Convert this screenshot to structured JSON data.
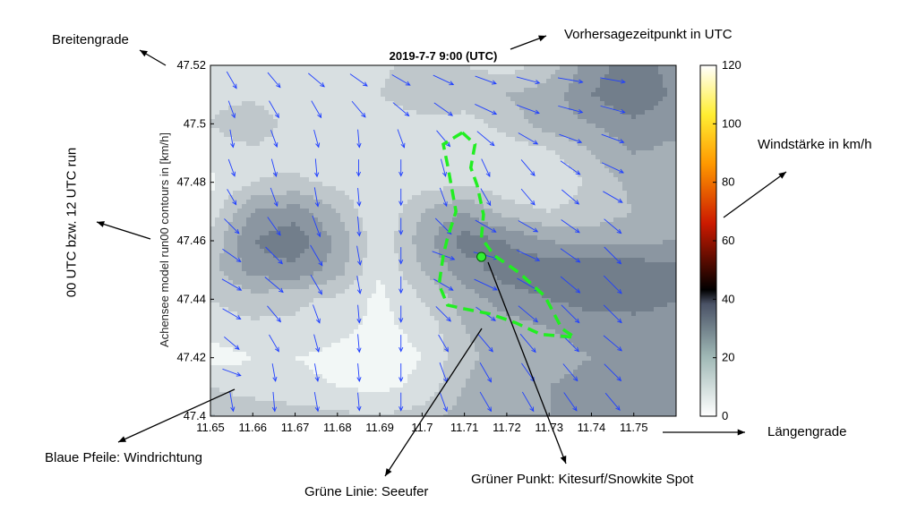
{
  "chart_data": {
    "type": "contour",
    "title": "2019-7-7  9:00 (UTC)",
    "ylabel": "Achensee model run00  contours in [km/h]",
    "xlabel": "",
    "xlim": [
      11.65,
      11.76
    ],
    "ylim": [
      47.4,
      47.52
    ],
    "x_ticks": [
      "11.65",
      "11.66",
      "11.67",
      "11.68",
      "11.69",
      "11.7",
      "11.71",
      "11.72",
      "11.73",
      "11.74",
      "11.75"
    ],
    "y_ticks": [
      "47.4",
      "47.42",
      "47.44",
      "47.46",
      "47.48",
      "47.5",
      "47.52"
    ],
    "colorbar": {
      "label_values": [
        "0",
        "20",
        "40",
        "60",
        "80",
        "100",
        "120"
      ],
      "min": 0,
      "max": 120,
      "stops": [
        "#ffffff",
        "#9fb8b5",
        "#5d6b80",
        "#000000",
        "#cc1a00",
        "#ffaa00",
        "#ffff66",
        "#ffffff"
      ]
    },
    "grid_lon": [
      11.65,
      11.66,
      11.67,
      11.68,
      11.69,
      11.7,
      11.71,
      11.72,
      11.73,
      11.74,
      11.75,
      11.76
    ],
    "grid_lat": [
      47.4,
      47.41,
      47.42,
      47.43,
      47.44,
      47.45,
      47.46,
      47.47,
      47.48,
      47.49,
      47.5,
      47.51,
      47.52
    ],
    "speed_kmh": [
      [
        12,
        11,
        10,
        9,
        8,
        10,
        14,
        16,
        16,
        17,
        18,
        19
      ],
      [
        8,
        6,
        5,
        4,
        3,
        5,
        12,
        15,
        16,
        17,
        19,
        20
      ],
      [
        2,
        4,
        4,
        3,
        2,
        4,
        11,
        14,
        15,
        16,
        18,
        18
      ],
      [
        6,
        7,
        7,
        5,
        3,
        5,
        12,
        14,
        16,
        17,
        18,
        18
      ],
      [
        8,
        10,
        9,
        7,
        3,
        8,
        14,
        18,
        20,
        22,
        22,
        20
      ],
      [
        10,
        18,
        19,
        14,
        4,
        12,
        18,
        22,
        23,
        24,
        23,
        21
      ],
      [
        9,
        20,
        23,
        15,
        5,
        14,
        22,
        20,
        16,
        14,
        15,
        16
      ],
      [
        6,
        16,
        18,
        12,
        4,
        12,
        16,
        10,
        8,
        10,
        12,
        14
      ],
      [
        3,
        8,
        9,
        7,
        4,
        6,
        7,
        5,
        4,
        9,
        13,
        14
      ],
      [
        6,
        7,
        6,
        5,
        4,
        8,
        4,
        5,
        7,
        12,
        16,
        15
      ],
      [
        8,
        11,
        6,
        5,
        4,
        6,
        6,
        10,
        14,
        16,
        19,
        17
      ],
      [
        7,
        7,
        6,
        6,
        8,
        12,
        11,
        12,
        14,
        20,
        24,
        19
      ],
      [
        8,
        6,
        5,
        6,
        7,
        10,
        8,
        6,
        10,
        18,
        22,
        18
      ]
    ],
    "wind_arrows": [
      {
        "lon": 11.655,
        "lat": 47.405,
        "dir": 170,
        "len": 0.6
      },
      {
        "lon": 11.665,
        "lat": 47.405,
        "dir": 175,
        "len": 0.6
      },
      {
        "lon": 11.675,
        "lat": 47.405,
        "dir": 170,
        "len": 0.6
      },
      {
        "lon": 11.685,
        "lat": 47.405,
        "dir": 175,
        "len": 0.5
      },
      {
        "lon": 11.695,
        "lat": 47.405,
        "dir": 180,
        "len": 0.5
      },
      {
        "lon": 11.705,
        "lat": 47.405,
        "dir": 160,
        "len": 0.7
      },
      {
        "lon": 11.715,
        "lat": 47.405,
        "dir": 150,
        "len": 0.8
      },
      {
        "lon": 11.725,
        "lat": 47.405,
        "dir": 150,
        "len": 0.8
      },
      {
        "lon": 11.735,
        "lat": 47.405,
        "dir": 145,
        "len": 0.8
      },
      {
        "lon": 11.745,
        "lat": 47.405,
        "dir": 140,
        "len": 0.8
      },
      {
        "lon": 11.655,
        "lat": 47.415,
        "dir": 110,
        "len": 0.6
      },
      {
        "lon": 11.665,
        "lat": 47.415,
        "dir": 170,
        "len": 0.5
      },
      {
        "lon": 11.675,
        "lat": 47.415,
        "dir": 170,
        "len": 0.5
      },
      {
        "lon": 11.685,
        "lat": 47.415,
        "dir": 175,
        "len": 0.5
      },
      {
        "lon": 11.695,
        "lat": 47.415,
        "dir": 180,
        "len": 0.5
      },
      {
        "lon": 11.705,
        "lat": 47.415,
        "dir": 160,
        "len": 0.7
      },
      {
        "lon": 11.715,
        "lat": 47.415,
        "dir": 150,
        "len": 0.8
      },
      {
        "lon": 11.725,
        "lat": 47.415,
        "dir": 145,
        "len": 0.8
      },
      {
        "lon": 11.735,
        "lat": 47.415,
        "dir": 140,
        "len": 0.8
      },
      {
        "lon": 11.745,
        "lat": 47.415,
        "dir": 135,
        "len": 0.9
      },
      {
        "lon": 11.655,
        "lat": 47.425,
        "dir": 130,
        "len": 0.6
      },
      {
        "lon": 11.665,
        "lat": 47.425,
        "dir": 150,
        "len": 0.6
      },
      {
        "lon": 11.675,
        "lat": 47.425,
        "dir": 165,
        "len": 0.5
      },
      {
        "lon": 11.685,
        "lat": 47.425,
        "dir": 175,
        "len": 0.5
      },
      {
        "lon": 11.695,
        "lat": 47.425,
        "dir": 180,
        "len": 0.4
      },
      {
        "lon": 11.705,
        "lat": 47.425,
        "dir": 150,
        "len": 0.6
      },
      {
        "lon": 11.715,
        "lat": 47.425,
        "dir": 140,
        "len": 0.8
      },
      {
        "lon": 11.725,
        "lat": 47.425,
        "dir": 140,
        "len": 0.9
      },
      {
        "lon": 11.735,
        "lat": 47.425,
        "dir": 135,
        "len": 0.9
      },
      {
        "lon": 11.745,
        "lat": 47.425,
        "dir": 130,
        "len": 0.9
      },
      {
        "lon": 11.655,
        "lat": 47.435,
        "dir": 120,
        "len": 0.7
      },
      {
        "lon": 11.665,
        "lat": 47.435,
        "dir": 140,
        "len": 0.7
      },
      {
        "lon": 11.675,
        "lat": 47.435,
        "dir": 160,
        "len": 0.6
      },
      {
        "lon": 11.685,
        "lat": 47.435,
        "dir": 175,
        "len": 0.5
      },
      {
        "lon": 11.695,
        "lat": 47.435,
        "dir": 180,
        "len": 0.4
      },
      {
        "lon": 11.705,
        "lat": 47.435,
        "dir": 135,
        "len": 0.7
      },
      {
        "lon": 11.715,
        "lat": 47.435,
        "dir": 125,
        "len": 0.9
      },
      {
        "lon": 11.725,
        "lat": 47.435,
        "dir": 130,
        "len": 1.0
      },
      {
        "lon": 11.735,
        "lat": 47.435,
        "dir": 135,
        "len": 1.0
      },
      {
        "lon": 11.745,
        "lat": 47.435,
        "dir": 135,
        "len": 1.0
      },
      {
        "lon": 11.655,
        "lat": 47.445,
        "dir": 120,
        "len": 0.8
      },
      {
        "lon": 11.665,
        "lat": 47.445,
        "dir": 130,
        "len": 0.9
      },
      {
        "lon": 11.675,
        "lat": 47.445,
        "dir": 150,
        "len": 0.8
      },
      {
        "lon": 11.685,
        "lat": 47.445,
        "dir": 170,
        "len": 0.5
      },
      {
        "lon": 11.695,
        "lat": 47.445,
        "dir": 180,
        "len": 0.4
      },
      {
        "lon": 11.705,
        "lat": 47.445,
        "dir": 120,
        "len": 0.8
      },
      {
        "lon": 11.715,
        "lat": 47.445,
        "dir": 115,
        "len": 1.0
      },
      {
        "lon": 11.725,
        "lat": 47.445,
        "dir": 120,
        "len": 1.0
      },
      {
        "lon": 11.735,
        "lat": 47.445,
        "dir": 130,
        "len": 1.0
      },
      {
        "lon": 11.745,
        "lat": 47.445,
        "dir": 135,
        "len": 1.0
      },
      {
        "lon": 11.655,
        "lat": 47.455,
        "dir": 125,
        "len": 0.8
      },
      {
        "lon": 11.665,
        "lat": 47.455,
        "dir": 135,
        "len": 0.9
      },
      {
        "lon": 11.675,
        "lat": 47.455,
        "dir": 150,
        "len": 0.9
      },
      {
        "lon": 11.685,
        "lat": 47.455,
        "dir": 170,
        "len": 0.6
      },
      {
        "lon": 11.695,
        "lat": 47.455,
        "dir": 180,
        "len": 0.4
      },
      {
        "lon": 11.705,
        "lat": 47.455,
        "dir": 110,
        "len": 0.9
      },
      {
        "lon": 11.715,
        "lat": 47.455,
        "dir": 105,
        "len": 1.0
      },
      {
        "lon": 11.725,
        "lat": 47.455,
        "dir": 115,
        "len": 1.0
      },
      {
        "lon": 11.735,
        "lat": 47.455,
        "dir": 125,
        "len": 0.9
      },
      {
        "lon": 11.745,
        "lat": 47.455,
        "dir": 135,
        "len": 0.9
      },
      {
        "lon": 11.655,
        "lat": 47.465,
        "dir": 135,
        "len": 0.7
      },
      {
        "lon": 11.665,
        "lat": 47.465,
        "dir": 145,
        "len": 0.8
      },
      {
        "lon": 11.675,
        "lat": 47.465,
        "dir": 160,
        "len": 0.8
      },
      {
        "lon": 11.685,
        "lat": 47.465,
        "dir": 175,
        "len": 0.6
      },
      {
        "lon": 11.695,
        "lat": 47.465,
        "dir": 180,
        "len": 0.4
      },
      {
        "lon": 11.705,
        "lat": 47.465,
        "dir": 135,
        "len": 0.8
      },
      {
        "lon": 11.715,
        "lat": 47.465,
        "dir": 120,
        "len": 0.9
      },
      {
        "lon": 11.725,
        "lat": 47.465,
        "dir": 120,
        "len": 0.8
      },
      {
        "lon": 11.735,
        "lat": 47.465,
        "dir": 125,
        "len": 0.8
      },
      {
        "lon": 11.745,
        "lat": 47.465,
        "dir": 130,
        "len": 0.8
      },
      {
        "lon": 11.655,
        "lat": 47.475,
        "dir": 150,
        "len": 0.5
      },
      {
        "lon": 11.665,
        "lat": 47.475,
        "dir": 160,
        "len": 0.6
      },
      {
        "lon": 11.675,
        "lat": 47.475,
        "dir": 170,
        "len": 0.6
      },
      {
        "lon": 11.685,
        "lat": 47.475,
        "dir": 175,
        "len": 0.5
      },
      {
        "lon": 11.695,
        "lat": 47.475,
        "dir": 180,
        "len": 0.4
      },
      {
        "lon": 11.705,
        "lat": 47.475,
        "dir": 160,
        "len": 0.6
      },
      {
        "lon": 11.715,
        "lat": 47.475,
        "dir": 150,
        "len": 0.6
      },
      {
        "lon": 11.725,
        "lat": 47.475,
        "dir": 140,
        "len": 0.7
      },
      {
        "lon": 11.735,
        "lat": 47.475,
        "dir": 130,
        "len": 0.8
      },
      {
        "lon": 11.745,
        "lat": 47.475,
        "dir": 120,
        "len": 0.8
      },
      {
        "lon": 11.655,
        "lat": 47.485,
        "dir": 160,
        "len": 0.5
      },
      {
        "lon": 11.665,
        "lat": 47.485,
        "dir": 165,
        "len": 0.5
      },
      {
        "lon": 11.675,
        "lat": 47.485,
        "dir": 175,
        "len": 0.5
      },
      {
        "lon": 11.685,
        "lat": 47.485,
        "dir": 180,
        "len": 0.4
      },
      {
        "lon": 11.695,
        "lat": 47.485,
        "dir": 180,
        "len": 0.4
      },
      {
        "lon": 11.705,
        "lat": 47.485,
        "dir": 165,
        "len": 0.5
      },
      {
        "lon": 11.715,
        "lat": 47.485,
        "dir": 155,
        "len": 0.6
      },
      {
        "lon": 11.725,
        "lat": 47.485,
        "dir": 140,
        "len": 0.7
      },
      {
        "lon": 11.735,
        "lat": 47.485,
        "dir": 125,
        "len": 0.9
      },
      {
        "lon": 11.745,
        "lat": 47.485,
        "dir": 115,
        "len": 0.9
      },
      {
        "lon": 11.655,
        "lat": 47.495,
        "dir": 170,
        "len": 0.5
      },
      {
        "lon": 11.665,
        "lat": 47.495,
        "dir": 160,
        "len": 0.5
      },
      {
        "lon": 11.675,
        "lat": 47.495,
        "dir": 165,
        "len": 0.5
      },
      {
        "lon": 11.685,
        "lat": 47.495,
        "dir": 175,
        "len": 0.5
      },
      {
        "lon": 11.695,
        "lat": 47.495,
        "dir": 160,
        "len": 0.6
      },
      {
        "lon": 11.705,
        "lat": 47.495,
        "dir": 140,
        "len": 0.7
      },
      {
        "lon": 11.715,
        "lat": 47.495,
        "dir": 130,
        "len": 0.8
      },
      {
        "lon": 11.725,
        "lat": 47.495,
        "dir": 120,
        "len": 0.8
      },
      {
        "lon": 11.735,
        "lat": 47.495,
        "dir": 110,
        "len": 0.9
      },
      {
        "lon": 11.745,
        "lat": 47.495,
        "dir": 110,
        "len": 0.9
      },
      {
        "lon": 11.655,
        "lat": 47.505,
        "dir": 160,
        "len": 0.5
      },
      {
        "lon": 11.665,
        "lat": 47.505,
        "dir": 150,
        "len": 0.6
      },
      {
        "lon": 11.675,
        "lat": 47.505,
        "dir": 150,
        "len": 0.6
      },
      {
        "lon": 11.685,
        "lat": 47.505,
        "dir": 140,
        "len": 0.7
      },
      {
        "lon": 11.695,
        "lat": 47.505,
        "dir": 130,
        "len": 0.7
      },
      {
        "lon": 11.705,
        "lat": 47.505,
        "dir": 125,
        "len": 0.8
      },
      {
        "lon": 11.715,
        "lat": 47.505,
        "dir": 115,
        "len": 0.9
      },
      {
        "lon": 11.725,
        "lat": 47.505,
        "dir": 110,
        "len": 0.9
      },
      {
        "lon": 11.735,
        "lat": 47.505,
        "dir": 105,
        "len": 1.0
      },
      {
        "lon": 11.745,
        "lat": 47.505,
        "dir": 105,
        "len": 1.0
      },
      {
        "lon": 11.655,
        "lat": 47.515,
        "dir": 150,
        "len": 0.6
      },
      {
        "lon": 11.665,
        "lat": 47.515,
        "dir": 140,
        "len": 0.6
      },
      {
        "lon": 11.675,
        "lat": 47.515,
        "dir": 130,
        "len": 0.7
      },
      {
        "lon": 11.685,
        "lat": 47.515,
        "dir": 125,
        "len": 0.7
      },
      {
        "lon": 11.695,
        "lat": 47.515,
        "dir": 120,
        "len": 0.7
      },
      {
        "lon": 11.705,
        "lat": 47.515,
        "dir": 115,
        "len": 0.8
      },
      {
        "lon": 11.715,
        "lat": 47.515,
        "dir": 110,
        "len": 0.8
      },
      {
        "lon": 11.725,
        "lat": 47.515,
        "dir": 105,
        "len": 0.9
      },
      {
        "lon": 11.735,
        "lat": 47.515,
        "dir": 100,
        "len": 1.0
      },
      {
        "lon": 11.745,
        "lat": 47.515,
        "dir": 100,
        "len": 1.0
      }
    ],
    "shoreline": [
      [
        11.7095,
        47.497
      ],
      [
        11.7125,
        47.493
      ],
      [
        11.7115,
        47.485
      ],
      [
        11.713,
        47.479
      ],
      [
        11.7145,
        47.469
      ],
      [
        11.714,
        47.461
      ],
      [
        11.717,
        47.455
      ],
      [
        11.723,
        47.449
      ],
      [
        11.729,
        47.441
      ],
      [
        11.733,
        47.43
      ],
      [
        11.736,
        47.427
      ],
      [
        11.728,
        47.428
      ],
      [
        11.722,
        47.432
      ],
      [
        11.716,
        47.435
      ],
      [
        11.709,
        47.437
      ],
      [
        11.706,
        47.438
      ],
      [
        11.704,
        47.445
      ],
      [
        11.705,
        47.455
      ],
      [
        11.706,
        47.461
      ],
      [
        11.708,
        47.47
      ],
      [
        11.707,
        47.478
      ],
      [
        11.706,
        47.486
      ],
      [
        11.705,
        47.493
      ],
      [
        11.7095,
        47.497
      ]
    ],
    "spot": {
      "lon": 11.714,
      "lat": 47.4545
    }
  },
  "annotations": {
    "breitengrade": "Breitengrade",
    "vorhersage": "Vorhersagezeitpunkt in UTC",
    "run": "00 UTC bzw.  12 UTC run",
    "windstaerke": "Windstärke in km/h",
    "laengengrade": "Längengrade",
    "blaue_pfeile": "Blaue Pfeile: Windrichtung",
    "gruene_linie": "Grüne Linie: Seeufer",
    "gruener_punkt": "Grüner Punkt: Kitesurf/Snowkite Spot"
  },
  "colors": {
    "arrow": "#1f3fff",
    "shoreline": "#22ee22",
    "spot": "#33ee33",
    "contour_line": "#3a3a3a"
  }
}
